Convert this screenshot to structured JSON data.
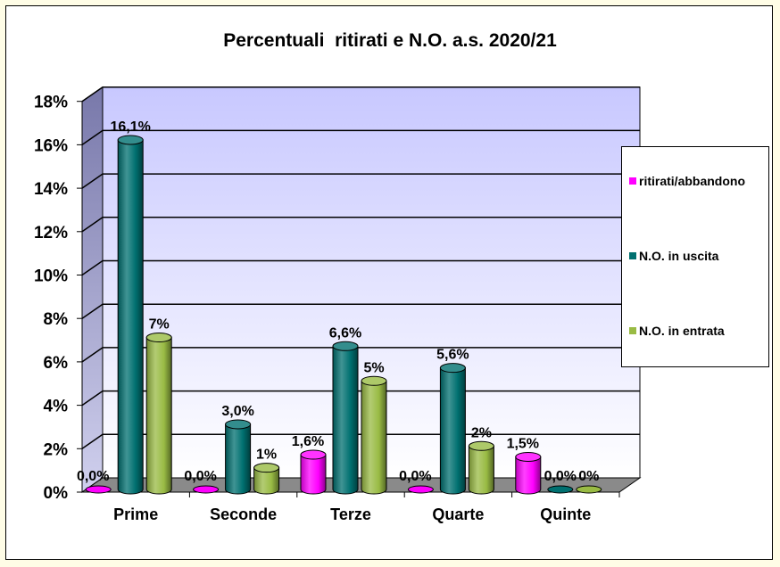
{
  "chart_data": {
    "type": "bar",
    "title": "Percentuali  ritirati e N.O. a.s. 2020/21",
    "categories": [
      "Prime",
      "Seconde",
      "Terze",
      "Quarte",
      "Quinte"
    ],
    "series": [
      {
        "name": "ritirati/abbandono",
        "values": [
          0.0,
          0.0,
          1.6,
          0.0,
          1.5
        ],
        "labels": [
          "0,0%",
          "0,0%",
          "1,6%",
          "0,0%",
          "1,5%"
        ],
        "color": "#ff00ff"
      },
      {
        "name": "N.O. in uscita",
        "values": [
          16.1,
          3.0,
          6.6,
          5.6,
          0.0
        ],
        "labels": [
          "16,1%",
          "3,0%",
          "6,6%",
          "5,6%",
          "0,0%"
        ],
        "color": "#007070"
      },
      {
        "name": "N.O. in entrata",
        "values": [
          7,
          1,
          5,
          2,
          0
        ],
        "labels": [
          "7%",
          "1%",
          "5%",
          "2%",
          "0%"
        ],
        "color": "#99bb44"
      }
    ],
    "yticks": [
      "0%",
      "2%",
      "4%",
      "6%",
      "8%",
      "10%",
      "12%",
      "14%",
      "16%",
      "18%"
    ],
    "ylim": [
      0,
      18
    ],
    "grid": true,
    "legend": "right"
  }
}
